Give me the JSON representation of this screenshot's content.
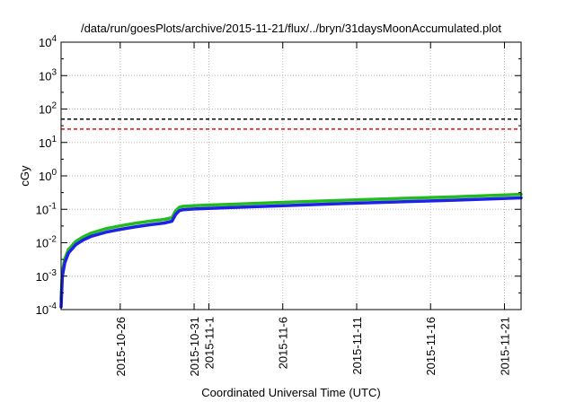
{
  "chart_data": {
    "type": "line",
    "title": "/data/run/goesPlots/archive/2015-11-21/flux/../bryn/31daysMoonAccumulated.plot",
    "xlabel": "Coordinated Universal Time (UTC)",
    "ylabel": "cGy",
    "yscale": "log",
    "ylim": [
      0.0001,
      10000
    ],
    "xlim": [
      "2015-10-22T00:00",
      "2015-11-22T03:00"
    ],
    "grid": true,
    "y_ticks": [
      {
        "value": 0.0001,
        "base": "10",
        "exp": "-4"
      },
      {
        "value": 0.001,
        "base": "10",
        "exp": "-3"
      },
      {
        "value": 0.01,
        "base": "10",
        "exp": "-2"
      },
      {
        "value": 0.1,
        "base": "10",
        "exp": "-1"
      },
      {
        "value": 1,
        "base": "10",
        "exp": "0"
      },
      {
        "value": 10,
        "base": "10",
        "exp": "1"
      },
      {
        "value": 100,
        "base": "10",
        "exp": "2"
      },
      {
        "value": 1000,
        "base": "10",
        "exp": "3"
      },
      {
        "value": 10000,
        "base": "10",
        "exp": "4"
      }
    ],
    "x_ticks": [
      {
        "date": "2015-10-26",
        "label": "2015-10-26"
      },
      {
        "date": "2015-10-31",
        "label": "2015-10-31"
      },
      {
        "date": "2015-11-01",
        "label": "2015-11-1"
      },
      {
        "date": "2015-11-06",
        "label": "2015-11-6"
      },
      {
        "date": "2015-11-11",
        "label": "2015-11-11"
      },
      {
        "date": "2015-11-16",
        "label": "2015-11-16"
      },
      {
        "date": "2015-11-21",
        "label": "2015-11-21"
      }
    ],
    "reference_lines": [
      {
        "y": 50,
        "color": "#000000",
        "style": "dashed"
      },
      {
        "y": 25,
        "color": "#ff0000",
        "style": "dashed"
      }
    ],
    "series": [
      {
        "color": "#22bb22",
        "x": [
          "2015-10-22T00:00",
          "2015-10-22T02:00",
          "2015-10-22T06:00",
          "2015-10-22T12:00",
          "2015-10-23T00:00",
          "2015-10-23T12:00",
          "2015-10-24T00:00",
          "2015-10-25T00:00",
          "2015-10-26T00:00",
          "2015-10-27T00:00",
          "2015-10-28T00:00",
          "2015-10-29T00:00",
          "2015-10-29T12:00",
          "2015-10-29T18:00",
          "2015-10-30T00:00",
          "2015-10-30T06:00",
          "2015-10-31T00:00",
          "2015-11-01T00:00",
          "2015-11-03T00:00",
          "2015-11-06T00:00",
          "2015-11-10T00:00",
          "2015-11-14T00:00",
          "2015-11-18T00:00",
          "2015-11-22T03:00"
        ],
        "y": [
          0.0002,
          0.0013,
          0.0033,
          0.0062,
          0.011,
          0.015,
          0.019,
          0.026,
          0.032,
          0.038,
          0.044,
          0.05,
          0.056,
          0.09,
          0.115,
          0.122,
          0.128,
          0.134,
          0.144,
          0.161,
          0.185,
          0.212,
          0.24,
          0.28
        ]
      },
      {
        "color": "#1e22e6",
        "x": [
          "2015-10-22T00:00",
          "2015-10-22T02:00",
          "2015-10-22T06:00",
          "2015-10-22T12:00",
          "2015-10-23T00:00",
          "2015-10-23T12:00",
          "2015-10-24T00:00",
          "2015-10-25T00:00",
          "2015-10-26T00:00",
          "2015-10-27T00:00",
          "2015-10-28T00:00",
          "2015-10-29T00:00",
          "2015-10-29T12:00",
          "2015-10-29T18:00",
          "2015-10-30T00:00",
          "2015-10-30T06:00",
          "2015-10-31T00:00",
          "2015-11-01T00:00",
          "2015-11-03T00:00",
          "2015-11-06T00:00",
          "2015-11-10T00:00",
          "2015-11-14T00:00",
          "2015-11-18T00:00",
          "2015-11-22T03:00"
        ],
        "y": [
          0.00012,
          0.001,
          0.0025,
          0.0049,
          0.0088,
          0.0121,
          0.0153,
          0.0205,
          0.0251,
          0.0297,
          0.0345,
          0.039,
          0.044,
          0.07,
          0.091,
          0.097,
          0.102,
          0.107,
          0.115,
          0.128,
          0.148,
          0.168,
          0.19,
          0.22
        ]
      }
    ]
  }
}
